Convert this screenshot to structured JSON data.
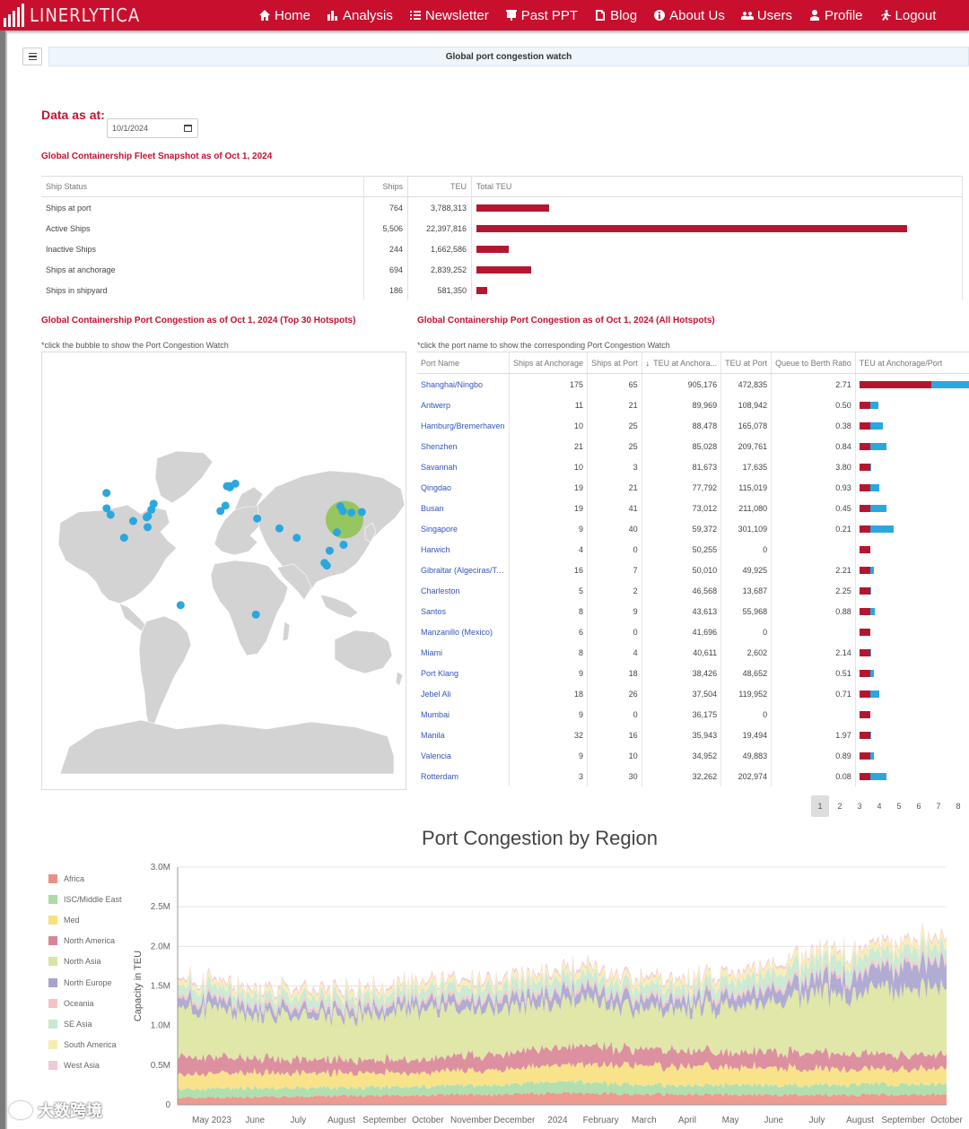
{
  "navbar": {
    "brand": "LINERLYTICA",
    "items": [
      {
        "label": "Home",
        "icon": "home-icon"
      },
      {
        "label": "Analysis",
        "icon": "bar-chart-icon"
      },
      {
        "label": "Newsletter",
        "icon": "list-icon"
      },
      {
        "label": "Past PPT",
        "icon": "presentation-icon"
      },
      {
        "label": "Blog",
        "icon": "document-icon"
      },
      {
        "label": "About Us",
        "icon": "info-icon"
      },
      {
        "label": "Users",
        "icon": "users-icon"
      },
      {
        "label": "Profile",
        "icon": "user-icon"
      },
      {
        "label": "Logout",
        "icon": "logout-runner-icon"
      }
    ],
    "color": "#c8102e"
  },
  "page": {
    "banner": "Global port congestion watch",
    "data_as_at_label": "Data as at:",
    "date_value": "10/1/2024"
  },
  "fleet": {
    "title": "Global Containership Fleet Snapshot as of Oct 1, 2024",
    "headers": [
      "Ship Status",
      "Ships",
      "TEU",
      "Total TEU"
    ],
    "max_teu": 22397816,
    "rows": [
      {
        "status": "Ships at port",
        "ships": "764",
        "teu": "3,788,313",
        "teu_value": 3788313
      },
      {
        "status": "Active Ships",
        "ships": "5,506",
        "teu": "22,397,816",
        "teu_value": 22397816
      },
      {
        "status": "Inactive Ships",
        "ships": "244",
        "teu": "1,662,586",
        "teu_value": 1662586
      },
      {
        "status": "Ships at anchorage",
        "ships": "694",
        "teu": "2,839,252",
        "teu_value": 2839252
      },
      {
        "status": "Ships in shipyard",
        "ships": "186",
        "teu": "581,350",
        "teu_value": 581350
      }
    ],
    "bar_color": "#b5162f"
  },
  "map_section": {
    "title": "Global Containership Port Congestion as of Oct 1, 2024 (Top 30 Hotspots)",
    "note": "*click the bubble to show the Port Congestion Watch",
    "land_color": "#d3d3d3",
    "bubble_color": "#2aa7df",
    "highlight_color": "#8bc34a",
    "bubbles": [
      {
        "lon": -118.2,
        "lat": 33.7
      },
      {
        "lon": -122.3,
        "lat": 37.8
      },
      {
        "lon": -122.4,
        "lat": 47.6
      },
      {
        "lon": -95.0,
        "lat": 29.7
      },
      {
        "lon": -81.1,
        "lat": 32.1
      },
      {
        "lon": -79.9,
        "lat": 32.8
      },
      {
        "lon": -74.0,
        "lat": 40.7
      },
      {
        "lon": -76.3,
        "lat": 36.9
      },
      {
        "lon": -80.2,
        "lat": 25.8
      },
      {
        "lon": -104.3,
        "lat": 19.1
      },
      {
        "lon": -46.3,
        "lat": -23.9
      },
      {
        "lon": -5.4,
        "lat": 36.1
      },
      {
        "lon": -0.3,
        "lat": 39.5
      },
      {
        "lon": 4.4,
        "lat": 51.2
      },
      {
        "lon": 4.3,
        "lat": 51.9
      },
      {
        "lon": 9.9,
        "lat": 53.5
      },
      {
        "lon": 1.3,
        "lat": 51.9
      },
      {
        "lon": 55.1,
        "lat": 25.0
      },
      {
        "lon": 72.9,
        "lat": 19.0
      },
      {
        "lon": 31.0,
        "lat": -29.9
      },
      {
        "lon": 32.3,
        "lat": 31.3
      },
      {
        "lon": 101.4,
        "lat": 3.0
      },
      {
        "lon": 103.8,
        "lat": 1.3
      },
      {
        "lon": 121.0,
        "lat": 14.6
      },
      {
        "lon": 114.1,
        "lat": 22.5
      },
      {
        "lon": 120.3,
        "lat": 36.1
      },
      {
        "lon": 129.0,
        "lat": 35.1
      },
      {
        "lon": 117.7,
        "lat": 39.0
      },
      {
        "lon": 139.7,
        "lat": 35.4
      },
      {
        "lon": 106.7,
        "lat": 10.8
      }
    ],
    "highlight": {
      "lon": 122.0,
      "lat": 30.6
    }
  },
  "ports_section": {
    "title": "Global Containership Port Congestion as of Oct 1, 2024 (All Hotspots)",
    "note": "*click the port name to show the corresponding Port Congestion Watch",
    "headers": [
      "Port Name",
      "Ships at Anchorage",
      "Ships at Port",
      "TEU at Anchora...",
      "TEU at Port",
      "Queue to Berth Ratio",
      "TEU at Anchorage/Port"
    ],
    "sort_arrow": "↓",
    "max_total": 1378011,
    "anchorage_color": "#b5162f",
    "port_color": "#2aa7df",
    "rows": [
      {
        "name": "Shanghai/Ningbo",
        "anch": "175",
        "port": "65",
        "teu_anch": "905,176",
        "teu_port": "472,835",
        "ratio": "2.71",
        "a": 905176,
        "p": 472835
      },
      {
        "name": "Antwerp",
        "anch": "11",
        "port": "21",
        "teu_anch": "89,969",
        "teu_port": "108,942",
        "ratio": "0.50",
        "a": 89969,
        "p": 108942
      },
      {
        "name": "Hamburg/Bremerhaven",
        "anch": "10",
        "port": "25",
        "teu_anch": "88,478",
        "teu_port": "165,078",
        "ratio": "0.38",
        "a": 88478,
        "p": 165078
      },
      {
        "name": "Shenzhen",
        "anch": "21",
        "port": "25",
        "teu_anch": "85,028",
        "teu_port": "209,761",
        "ratio": "0.84",
        "a": 85028,
        "p": 209761
      },
      {
        "name": "Savannah",
        "anch": "10",
        "port": "3",
        "teu_anch": "81,673",
        "teu_port": "17,635",
        "ratio": "3.80",
        "a": 81673,
        "p": 17635
      },
      {
        "name": "Qingdao",
        "anch": "19",
        "port": "21",
        "teu_anch": "77,792",
        "teu_port": "115,019",
        "ratio": "0.93",
        "a": 77792,
        "p": 115019
      },
      {
        "name": "Busan",
        "anch": "19",
        "port": "41",
        "teu_anch": "73,012",
        "teu_port": "211,080",
        "ratio": "0.45",
        "a": 73012,
        "p": 211080
      },
      {
        "name": "Singapore",
        "anch": "9",
        "port": "40",
        "teu_anch": "59,372",
        "teu_port": "301,109",
        "ratio": "0.21",
        "a": 59372,
        "p": 301109
      },
      {
        "name": "Harwich",
        "anch": "4",
        "port": "0",
        "teu_anch": "50,255",
        "teu_port": "0",
        "ratio": "",
        "a": 50255,
        "p": 0
      },
      {
        "name": "Gibraltar (Algeciras/Tan...",
        "anch": "16",
        "port": "7",
        "teu_anch": "50,010",
        "teu_port": "49,925",
        "ratio": "2.21",
        "a": 50010,
        "p": 49925
      },
      {
        "name": "Charleston",
        "anch": "5",
        "port": "2",
        "teu_anch": "46,568",
        "teu_port": "13,687",
        "ratio": "2.25",
        "a": 46568,
        "p": 13687
      },
      {
        "name": "Santos",
        "anch": "8",
        "port": "9",
        "teu_anch": "43,613",
        "teu_port": "55,968",
        "ratio": "0.88",
        "a": 43613,
        "p": 55968
      },
      {
        "name": "Manzanillo (Mexico)",
        "anch": "6",
        "port": "0",
        "teu_anch": "41,696",
        "teu_port": "0",
        "ratio": "",
        "a": 41696,
        "p": 0
      },
      {
        "name": "Miami",
        "anch": "8",
        "port": "4",
        "teu_anch": "40,611",
        "teu_port": "2,602",
        "ratio": "2.14",
        "a": 40611,
        "p": 2602
      },
      {
        "name": "Port Klang",
        "anch": "9",
        "port": "18",
        "teu_anch": "38,426",
        "teu_port": "48,652",
        "ratio": "0.51",
        "a": 38426,
        "p": 48652
      },
      {
        "name": "Jebel Ali",
        "anch": "18",
        "port": "26",
        "teu_anch": "37,504",
        "teu_port": "119,952",
        "ratio": "0.71",
        "a": 37504,
        "p": 119952
      },
      {
        "name": "Mumbai",
        "anch": "9",
        "port": "0",
        "teu_anch": "36,175",
        "teu_port": "0",
        "ratio": "",
        "a": 36175,
        "p": 0
      },
      {
        "name": "Manila",
        "anch": "32",
        "port": "16",
        "teu_anch": "35,943",
        "teu_port": "19,494",
        "ratio": "1.97",
        "a": 35943,
        "p": 19494
      },
      {
        "name": "Valencia",
        "anch": "9",
        "port": "10",
        "teu_anch": "34,952",
        "teu_port": "49,883",
        "ratio": "0.89",
        "a": 34952,
        "p": 49883
      },
      {
        "name": "Rotterdam",
        "anch": "3",
        "port": "30",
        "teu_anch": "32,262",
        "teu_port": "202,974",
        "ratio": "0.08",
        "a": 32262,
        "p": 202974
      }
    ],
    "pages": [
      "1",
      "2",
      "3",
      "4",
      "5",
      "6",
      "7",
      "8"
    ],
    "active_page": "1"
  },
  "chart_data": {
    "type": "area",
    "title": "Port Congestion by Region",
    "ylabel": "Capacity in TEU",
    "xlabel": "",
    "ylim": [
      0,
      3000000
    ],
    "y_ticks": [
      "0",
      "0.5M",
      "1.0M",
      "1.5M",
      "2.0M",
      "2.5M",
      "3.0M"
    ],
    "x_ticks": [
      "May 2023",
      "June",
      "July",
      "August",
      "September",
      "October",
      "November",
      "December",
      "2024",
      "February",
      "March",
      "April",
      "May",
      "June",
      "July",
      "August",
      "September",
      "October"
    ],
    "grid": true,
    "legend_position": "left",
    "x": [
      "May 2023",
      "June",
      "July",
      "August",
      "September",
      "October",
      "November",
      "December",
      "2024",
      "February",
      "March",
      "April",
      "May",
      "June",
      "July",
      "August",
      "September",
      "October"
    ],
    "series": [
      {
        "name": "Africa",
        "color": "#ec8f84",
        "values": [
          90000,
          95000,
          100000,
          105000,
          110000,
          120000,
          125000,
          130000,
          140000,
          150000,
          140000,
          135000,
          130000,
          125000,
          120000,
          125000,
          130000,
          135000
        ]
      },
      {
        "name": "ISC/Middle East",
        "color": "#a9dca6",
        "values": [
          110000,
          115000,
          110000,
          110000,
          105000,
          110000,
          115000,
          120000,
          130000,
          140000,
          120000,
          110000,
          115000,
          120000,
          125000,
          130000,
          135000,
          140000
        ]
      },
      {
        "name": "Med",
        "color": "#f7e07e",
        "values": [
          190000,
          200000,
          195000,
          190000,
          185000,
          180000,
          185000,
          190000,
          200000,
          220000,
          230000,
          240000,
          230000,
          220000,
          210000,
          200000,
          190000,
          200000
        ]
      },
      {
        "name": "North America",
        "color": "#d98596",
        "values": [
          230000,
          200000,
          180000,
          170000,
          160000,
          170000,
          180000,
          200000,
          220000,
          230000,
          210000,
          200000,
          190000,
          200000,
          210000,
          200000,
          190000,
          180000
        ]
      },
      {
        "name": "North Asia",
        "color": "#dde4a0",
        "values": [
          650000,
          600000,
          550000,
          560000,
          560000,
          620000,
          600000,
          580000,
          560000,
          600000,
          520000,
          500000,
          560000,
          620000,
          720000,
          780000,
          820000,
          850000
        ]
      },
      {
        "name": "North Europe",
        "color": "#a9a3cf",
        "values": [
          120000,
          110000,
          100000,
          90000,
          90000,
          100000,
          110000,
          120000,
          130000,
          140000,
          130000,
          120000,
          130000,
          150000,
          180000,
          230000,
          280000,
          330000
        ]
      },
      {
        "name": "Oceania",
        "color": "#f7c2c4",
        "values": [
          40000,
          42000,
          44000,
          45000,
          46000,
          45000,
          44000,
          43000,
          42000,
          41000,
          40000,
          42000,
          44000,
          46000,
          48000,
          47000,
          46000,
          45000
        ]
      },
      {
        "name": "SE Asia",
        "color": "#c6e8cf",
        "values": [
          130000,
          125000,
          120000,
          118000,
          115000,
          120000,
          125000,
          130000,
          135000,
          140000,
          130000,
          125000,
          140000,
          160000,
          180000,
          170000,
          160000,
          150000
        ]
      },
      {
        "name": "South America",
        "color": "#f8ecb0",
        "values": [
          60000,
          62000,
          64000,
          66000,
          68000,
          70000,
          72000,
          74000,
          76000,
          78000,
          80000,
          82000,
          84000,
          86000,
          88000,
          90000,
          92000,
          94000
        ]
      },
      {
        "name": "West Asia",
        "color": "#f1c9d2",
        "values": [
          30000,
          32000,
          34000,
          33000,
          32000,
          31000,
          30000,
          32000,
          34000,
          36000,
          35000,
          34000,
          33000,
          32000,
          31000,
          30000,
          32000,
          34000
        ]
      }
    ]
  },
  "watermark": {
    "text": "大数跨境"
  }
}
